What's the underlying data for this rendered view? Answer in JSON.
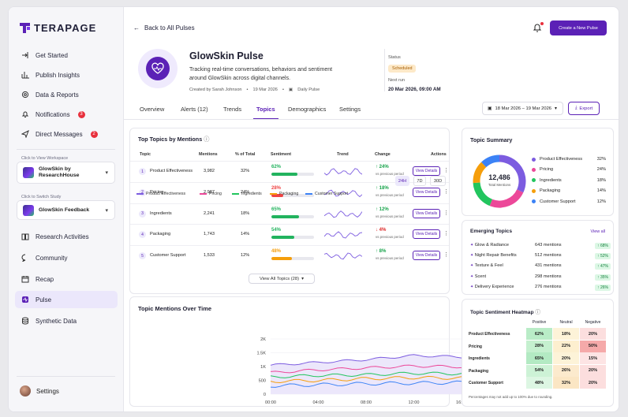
{
  "brand": {
    "name": "TERAPAGE"
  },
  "sidebar": {
    "items": [
      {
        "label": "Get Started",
        "icon": "arrow-right-to-bracket-icon"
      },
      {
        "label": "Publish Insights",
        "icon": "bar-chart-icon"
      },
      {
        "label": "Data & Reports",
        "icon": "settings-wheel-icon"
      },
      {
        "label": "Notifications",
        "icon": "bell-icon",
        "badge": "3"
      },
      {
        "label": "Direct Messages",
        "icon": "paper-plane-icon",
        "badge": "2"
      },
      {
        "label": "Research Activities",
        "icon": "book-icon"
      },
      {
        "label": "Community",
        "icon": "chat-bubble-icon"
      },
      {
        "label": "Recap",
        "icon": "calendar-icon"
      },
      {
        "label": "Pulse",
        "icon": "pulse-icon",
        "active": true
      },
      {
        "label": "Synthetic Data",
        "icon": "database-icon"
      }
    ],
    "workspace": {
      "hint": "Click to View Workspace",
      "value": "GlowSkin by ResearchHouse"
    },
    "study": {
      "hint": "Click to Switch Study",
      "value": "GlowSkin Feedback"
    },
    "settings_label": "Settings"
  },
  "header": {
    "back_label": "Back to All Pulses",
    "create_label": "Create a New Pulse"
  },
  "pulse": {
    "title": "GlowSkin Pulse",
    "description": "Tracking real-time conversations, behaviors and sentiment around GlowSkin across digital channels.",
    "created_by": "Created by Sarah Johnson",
    "created_date": "19 Mar 2026",
    "frequency": "Daily Pulse",
    "status_label": "Status",
    "status_value": "Scheduled",
    "next_run_label": "Next run",
    "next_run_value": "20 Mar 2026, 09:00 AM"
  },
  "tabs": [
    {
      "label": "Overview"
    },
    {
      "label": "Alerts (12)"
    },
    {
      "label": "Trends"
    },
    {
      "label": "Topics",
      "active": true
    },
    {
      "label": "Demographics"
    },
    {
      "label": "Settings"
    }
  ],
  "date_range": "18 Mar 2026 – 19 Mar 2026",
  "export_label": "Export",
  "top_topics": {
    "title": "Top Topics by Mentions",
    "columns": [
      "Topic",
      "Mentions",
      "% of Total",
      "Sentiment",
      "Trend",
      "Change",
      "Actions"
    ],
    "rows": [
      {
        "n": "1",
        "topic": "Product Effectiveness",
        "mentions": "3,982",
        "pct": "32%",
        "sent": "62%",
        "sent_val": 62,
        "sent_color": "#22b35e",
        "change": "↑ 24%",
        "up": true,
        "sub": "vs previous period",
        "action": "View Details"
      },
      {
        "n": "2",
        "topic": "Pricing",
        "mentions": "2,987",
        "pct": "24%",
        "sent": "28%",
        "sent_val": 28,
        "sent_color": "#ef4444",
        "change": "↑ 18%",
        "up": true,
        "sub": "vs previous period",
        "action": "View Details"
      },
      {
        "n": "3",
        "topic": "Ingredients",
        "mentions": "2,241",
        "pct": "18%",
        "sent": "65%",
        "sent_val": 65,
        "sent_color": "#22b35e",
        "change": "↑ 12%",
        "up": true,
        "sub": "vs previous period",
        "action": "View Details"
      },
      {
        "n": "4",
        "topic": "Packaging",
        "mentions": "1,743",
        "pct": "14%",
        "sent": "54%",
        "sent_val": 54,
        "sent_color": "#22b35e",
        "change": "↓ 4%",
        "up": false,
        "sub": "vs previous period",
        "action": "View Details"
      },
      {
        "n": "5",
        "topic": "Customer Support",
        "mentions": "1,533",
        "pct": "12%",
        "sent": "48%",
        "sent_val": 48,
        "sent_color": "#f59e0b",
        "change": "↑ 8%",
        "up": true,
        "sub": "vs previous period",
        "action": "View Details"
      }
    ],
    "view_all": "View All Topics (28)"
  },
  "chart_data": {
    "type": "line",
    "title": "Topic Mentions Over Time",
    "ranges": [
      "24H",
      "7D",
      "30D"
    ],
    "active_range": "24H",
    "x": [
      "00:00",
      "04:00",
      "08:00",
      "12:00",
      "16:00",
      "20:00",
      "24:00"
    ],
    "ylim": [
      0,
      2000
    ],
    "yticks": [
      "0",
      "500",
      "1K",
      "1.5K",
      "2K"
    ],
    "series": [
      {
        "name": "Product Effectiveness",
        "color": "#7c5ce0",
        "values": [
          1050,
          1150,
          1250,
          1400,
          1350,
          1450,
          1500
        ]
      },
      {
        "name": "Pricing",
        "color": "#ec4899",
        "values": [
          780,
          880,
          950,
          1020,
          990,
          1060,
          1000
        ]
      },
      {
        "name": "Ingredients",
        "color": "#22c55e",
        "values": [
          620,
          680,
          700,
          760,
          740,
          780,
          820
        ]
      },
      {
        "name": "Packaging",
        "color": "#f59e0b",
        "values": [
          460,
          500,
          560,
          600,
          580,
          620,
          600
        ]
      },
      {
        "name": "Customer Support",
        "color": "#3b82f6",
        "values": [
          300,
          340,
          380,
          400,
          420,
          410,
          440
        ]
      }
    ]
  },
  "summary": {
    "title": "Topic Summary",
    "total": "12,486",
    "total_label": "Total Mentions",
    "items": [
      {
        "label": "Product Effectiveness",
        "value": 32,
        "pct": "32%",
        "color": "#7c5ce0"
      },
      {
        "label": "Pricing",
        "value": 24,
        "pct": "24%",
        "color": "#ec4899"
      },
      {
        "label": "Ingredients",
        "value": 18,
        "pct": "18%",
        "color": "#22c55e"
      },
      {
        "label": "Packaging",
        "value": 14,
        "pct": "14%",
        "color": "#f59e0b"
      },
      {
        "label": "Customer Support",
        "value": 12,
        "pct": "12%",
        "color": "#3b82f6"
      }
    ]
  },
  "emerging": {
    "title": "Emerging Topics",
    "view_all": "View all",
    "items": [
      {
        "label": "Glow & Radiance",
        "mentions": "643 mentions",
        "growth": "↑ 68%"
      },
      {
        "label": "Night Repair Benefits",
        "mentions": "512 mentions",
        "growth": "↑ 52%"
      },
      {
        "label": "Texture & Feel",
        "mentions": "431 mentions",
        "growth": "↑ 47%"
      },
      {
        "label": "Scent",
        "mentions": "298 mentions",
        "growth": "↑ 35%"
      },
      {
        "label": "Delivery Experience",
        "mentions": "276 mentions",
        "growth": "↑ 26%"
      }
    ]
  },
  "heatmap": {
    "title": "Topic Sentiment Heatmap",
    "columns": [
      "Positive",
      "Neutral",
      "Negative"
    ],
    "rows": [
      {
        "label": "Product Effectiveness",
        "values": [
          "62%",
          "18%",
          "20%"
        ]
      },
      {
        "label": "Pricing",
        "values": [
          "28%",
          "22%",
          "50%"
        ]
      },
      {
        "label": "Ingredients",
        "values": [
          "65%",
          "20%",
          "15%"
        ]
      },
      {
        "label": "Packaging",
        "values": [
          "54%",
          "26%",
          "20%"
        ]
      },
      {
        "label": "Customer Support",
        "values": [
          "48%",
          "32%",
          "20%"
        ]
      }
    ],
    "note": "Percentages may not add up to 100% due to rounding."
  }
}
